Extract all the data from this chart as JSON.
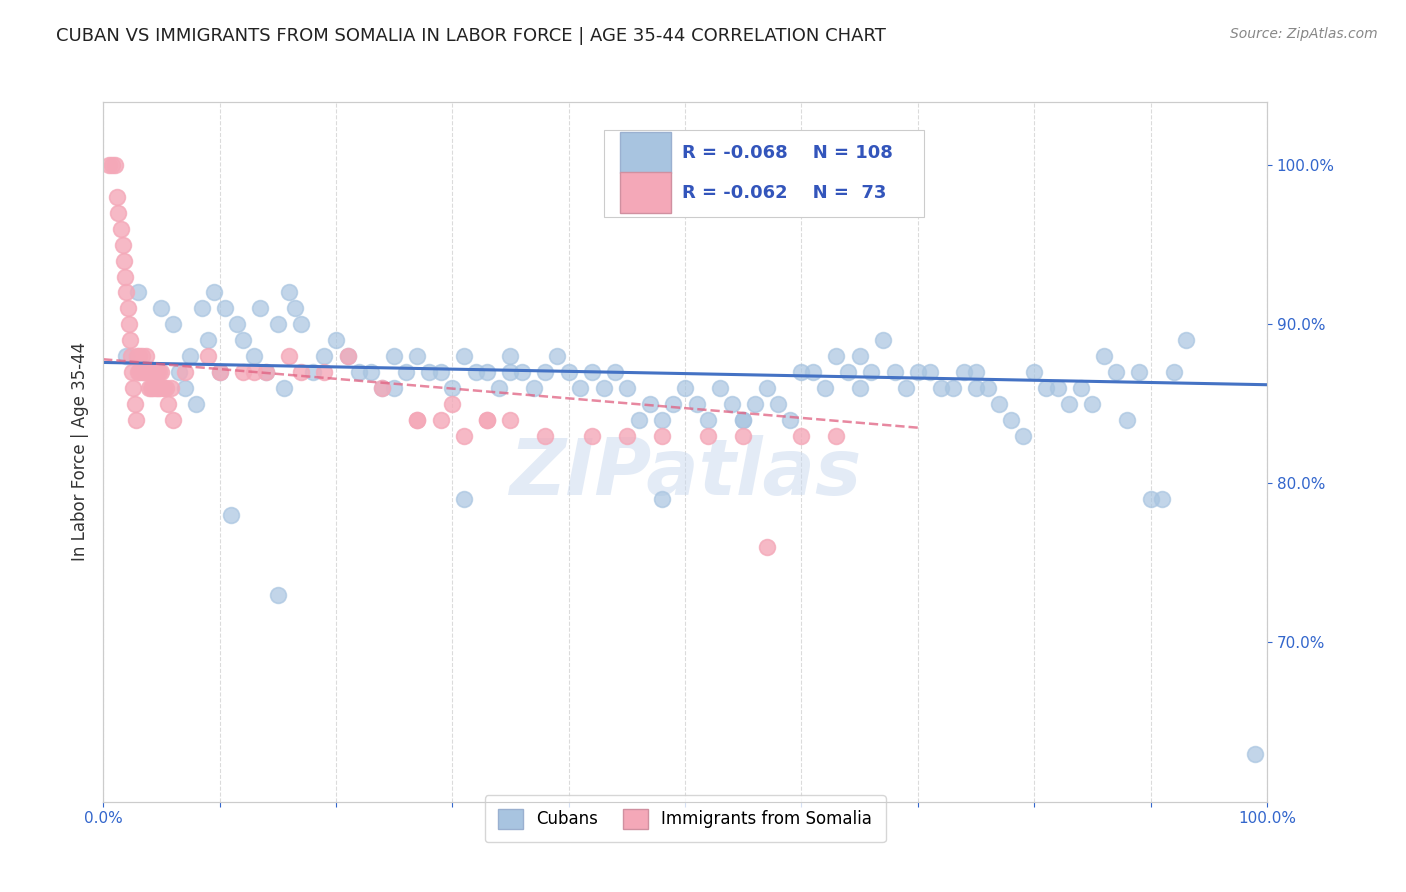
{
  "title": "CUBAN VS IMMIGRANTS FROM SOMALIA IN LABOR FORCE | AGE 35-44 CORRELATION CHART",
  "source": "Source: ZipAtlas.com",
  "ylabel": "In Labor Force | Age 35-44",
  "right_yticks": [
    "100.0%",
    "90.0%",
    "80.0%",
    "70.0%"
  ],
  "right_ytick_vals": [
    1.0,
    0.9,
    0.8,
    0.7
  ],
  "watermark": "ZIPatlas",
  "blue_color": "#a8c4e0",
  "pink_color": "#f4a8b8",
  "blue_line_color": "#4472c4",
  "pink_line_color": "#e06080",
  "legend_text_color": "#3355bb",
  "title_color": "#222222",
  "grid_color": "#cccccc",
  "background_color": "#ffffff",
  "cubans_x": [
    0.02,
    0.03,
    0.05,
    0.06,
    0.065,
    0.07,
    0.075,
    0.08,
    0.085,
    0.09,
    0.095,
    0.1,
    0.105,
    0.11,
    0.115,
    0.12,
    0.13,
    0.135,
    0.14,
    0.15,
    0.155,
    0.16,
    0.165,
    0.17,
    0.18,
    0.19,
    0.2,
    0.21,
    0.22,
    0.23,
    0.24,
    0.25,
    0.26,
    0.27,
    0.28,
    0.29,
    0.3,
    0.31,
    0.32,
    0.33,
    0.34,
    0.35,
    0.36,
    0.37,
    0.38,
    0.39,
    0.4,
    0.41,
    0.42,
    0.43,
    0.44,
    0.45,
    0.46,
    0.47,
    0.48,
    0.49,
    0.5,
    0.51,
    0.52,
    0.53,
    0.54,
    0.55,
    0.56,
    0.57,
    0.58,
    0.59,
    0.6,
    0.61,
    0.62,
    0.63,
    0.64,
    0.65,
    0.66,
    0.67,
    0.68,
    0.69,
    0.7,
    0.71,
    0.72,
    0.73,
    0.74,
    0.75,
    0.76,
    0.77,
    0.78,
    0.79,
    0.8,
    0.81,
    0.82,
    0.83,
    0.84,
    0.85,
    0.86,
    0.87,
    0.88,
    0.89,
    0.9,
    0.91,
    0.92,
    0.93,
    0.31,
    0.48,
    0.99,
    0.15,
    0.25,
    0.35,
    0.55,
    0.65,
    0.75
  ],
  "cubans_y": [
    0.88,
    0.92,
    0.91,
    0.9,
    0.87,
    0.86,
    0.88,
    0.85,
    0.91,
    0.89,
    0.92,
    0.87,
    0.91,
    0.78,
    0.9,
    0.89,
    0.88,
    0.91,
    0.87,
    0.9,
    0.86,
    0.92,
    0.91,
    0.9,
    0.87,
    0.88,
    0.89,
    0.88,
    0.87,
    0.87,
    0.86,
    0.88,
    0.87,
    0.88,
    0.87,
    0.87,
    0.86,
    0.88,
    0.87,
    0.87,
    0.86,
    0.88,
    0.87,
    0.86,
    0.87,
    0.88,
    0.87,
    0.86,
    0.87,
    0.86,
    0.87,
    0.86,
    0.84,
    0.85,
    0.84,
    0.85,
    0.86,
    0.85,
    0.84,
    0.86,
    0.85,
    0.84,
    0.85,
    0.86,
    0.85,
    0.84,
    0.87,
    0.87,
    0.86,
    0.88,
    0.87,
    0.88,
    0.87,
    0.89,
    0.87,
    0.86,
    0.87,
    0.87,
    0.86,
    0.86,
    0.87,
    0.86,
    0.86,
    0.85,
    0.84,
    0.83,
    0.87,
    0.86,
    0.86,
    0.85,
    0.86,
    0.85,
    0.88,
    0.87,
    0.84,
    0.87,
    0.79,
    0.79,
    0.87,
    0.89,
    0.79,
    0.79,
    0.63,
    0.73,
    0.86,
    0.87,
    0.84,
    0.86,
    0.87
  ],
  "somalia_x": [
    0.005,
    0.008,
    0.01,
    0.012,
    0.013,
    0.015,
    0.017,
    0.018,
    0.019,
    0.02,
    0.021,
    0.022,
    0.023,
    0.024,
    0.025,
    0.026,
    0.027,
    0.028,
    0.029,
    0.03,
    0.031,
    0.032,
    0.033,
    0.034,
    0.035,
    0.036,
    0.037,
    0.038,
    0.039,
    0.04,
    0.041,
    0.042,
    0.043,
    0.044,
    0.045,
    0.046,
    0.047,
    0.048,
    0.049,
    0.05,
    0.052,
    0.054,
    0.056,
    0.058,
    0.06,
    0.07,
    0.09,
    0.1,
    0.12,
    0.13,
    0.14,
    0.16,
    0.17,
    0.19,
    0.21,
    0.24,
    0.27,
    0.29,
    0.31,
    0.33,
    0.35,
    0.38,
    0.42,
    0.45,
    0.48,
    0.52,
    0.55,
    0.57,
    0.6,
    0.63,
    0.27,
    0.3,
    0.33
  ],
  "somalia_y": [
    1.0,
    1.0,
    1.0,
    0.98,
    0.97,
    0.96,
    0.95,
    0.94,
    0.93,
    0.92,
    0.91,
    0.9,
    0.89,
    0.88,
    0.87,
    0.86,
    0.85,
    0.84,
    0.88,
    0.87,
    0.88,
    0.87,
    0.88,
    0.87,
    0.87,
    0.87,
    0.88,
    0.87,
    0.86,
    0.87,
    0.86,
    0.87,
    0.86,
    0.87,
    0.86,
    0.87,
    0.86,
    0.87,
    0.86,
    0.87,
    0.86,
    0.86,
    0.85,
    0.86,
    0.84,
    0.87,
    0.88,
    0.87,
    0.87,
    0.87,
    0.87,
    0.88,
    0.87,
    0.87,
    0.88,
    0.86,
    0.84,
    0.84,
    0.83,
    0.84,
    0.84,
    0.83,
    0.83,
    0.83,
    0.83,
    0.83,
    0.83,
    0.76,
    0.83,
    0.83,
    0.84,
    0.85,
    0.84
  ],
  "blue_line_x": [
    0.0,
    1.0
  ],
  "blue_line_y": [
    0.876,
    0.862
  ],
  "pink_line_x": [
    0.0,
    0.7
  ],
  "pink_line_y": [
    0.878,
    0.835
  ],
  "xlim": [
    0.0,
    1.0
  ],
  "ylim": [
    0.6,
    1.04
  ]
}
